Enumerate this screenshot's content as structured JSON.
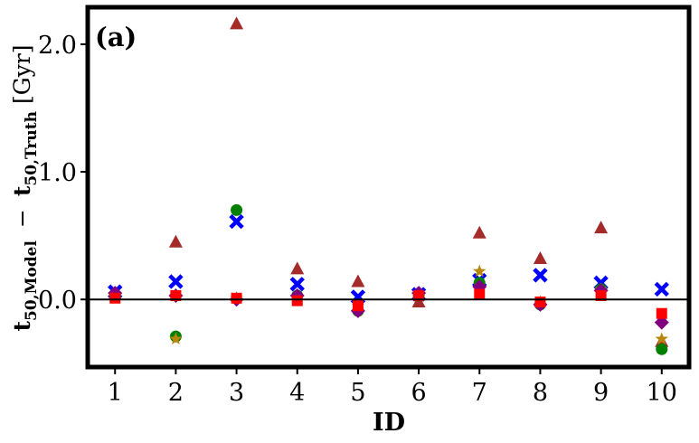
{
  "chart_data": {
    "type": "scatter",
    "panel_label": "(a)",
    "xlabel": "ID",
    "ylabel": {
      "prefix": "t",
      "sub1": "50,Model",
      "minus": "−",
      "mid": "t",
      "sub2": "50,Truth",
      "unit": "[Gyr]"
    },
    "xlim": [
      0.55,
      10.45
    ],
    "ylim": [
      -0.53,
      2.29
    ],
    "xticks": [
      1,
      2,
      3,
      4,
      5,
      6,
      7,
      8,
      9,
      10
    ],
    "xtick_labels": [
      "1",
      "2",
      "3",
      "4",
      "5",
      "6",
      "7",
      "8",
      "9",
      "10"
    ],
    "yticks": [
      0.0,
      1.0,
      2.0
    ],
    "ytick_labels": [
      "0.0",
      "1.0",
      "2.0"
    ],
    "reference_line_y": 0.0,
    "grid": false,
    "legend": false,
    "series": [
      {
        "marker": "triangle",
        "color": "#a52a2a",
        "x": [
          1,
          2,
          3,
          4,
          5,
          6,
          7,
          8,
          9,
          10
        ],
        "y": [
          0.04,
          0.45,
          2.16,
          0.24,
          0.14,
          -0.02,
          0.52,
          0.32,
          0.56,
          -0.33
        ]
      },
      {
        "marker": "x",
        "color": "#0000ff",
        "x": [
          1,
          2,
          3,
          4,
          5,
          6,
          7,
          8,
          9,
          10
        ],
        "y": [
          0.06,
          0.14,
          0.61,
          0.12,
          0.02,
          0.04,
          0.15,
          0.19,
          0.13,
          0.08
        ]
      },
      {
        "marker": "circle",
        "color": "#008000",
        "x": [
          1,
          2,
          3,
          4,
          5,
          6,
          7,
          8,
          9,
          10
        ],
        "y": [
          0.03,
          -0.29,
          0.7,
          0.03,
          -0.09,
          0.03,
          0.13,
          -0.04,
          0.08,
          -0.39
        ]
      },
      {
        "marker": "star",
        "color": "#b8860b",
        "x": [
          1,
          2,
          3,
          4,
          5,
          6,
          7,
          8,
          9,
          10
        ],
        "y": [
          0.02,
          -0.31,
          0.01,
          0.02,
          -0.05,
          0.03,
          0.22,
          -0.02,
          0.08,
          -0.31
        ]
      },
      {
        "marker": "diamond",
        "color": "#800080",
        "x": [
          1,
          2,
          3,
          4,
          5,
          6,
          7,
          8,
          9,
          10
        ],
        "y": [
          0.05,
          0.03,
          0.0,
          0.03,
          -0.09,
          0.05,
          0.1,
          -0.04,
          0.07,
          -0.18
        ]
      },
      {
        "marker": "square",
        "color": "#ff0000",
        "x": [
          1,
          2,
          3,
          4,
          5,
          6,
          7,
          8,
          9,
          10
        ],
        "y": [
          0.01,
          0.03,
          0.01,
          -0.01,
          -0.05,
          0.03,
          0.04,
          -0.02,
          0.03,
          -0.11
        ]
      }
    ]
  }
}
